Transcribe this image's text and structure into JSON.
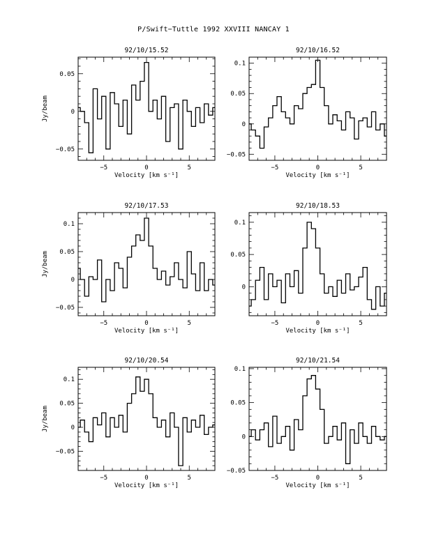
{
  "title": "P/Swift−Tuttle 1992 XXVIII   NANCAY      1",
  "colors": {
    "ink": "#000000",
    "background": "#ffffff"
  },
  "chart_data": [
    {
      "type": "line",
      "title": "92/10/15.52",
      "xlabel": "Velocity [km s⁻¹]",
      "ylabel": "Jy/beam",
      "xlim": [
        -8,
        8
      ],
      "ylim": [
        -0.065,
        0.072
      ],
      "yticks": [
        -0.05,
        0,
        0.05
      ],
      "ytick_labels": [
        "−0.05",
        "0",
        "0.05"
      ],
      "xticks": [
        -5,
        0,
        5
      ],
      "xtick_labels": [
        "−5",
        "0",
        "5"
      ],
      "grid": false,
      "x": [
        -8,
        -7.5,
        -7,
        -6.5,
        -6,
        -5.5,
        -5,
        -4.5,
        -4,
        -3.5,
        -3,
        -2.5,
        -2,
        -1.5,
        -1,
        -0.5,
        0,
        0.5,
        1,
        1.5,
        2,
        2.5,
        3,
        3.5,
        4,
        4.5,
        5,
        5.5,
        6,
        6.5,
        7,
        7.5,
        8
      ],
      "y": [
        0.005,
        0.0,
        -0.015,
        -0.055,
        0.03,
        -0.01,
        0.02,
        -0.05,
        0.025,
        0.01,
        -0.02,
        0.015,
        -0.03,
        0.035,
        0.015,
        0.04,
        0.065,
        0.0,
        0.015,
        -0.01,
        0.02,
        -0.04,
        0.005,
        0.01,
        -0.05,
        0.015,
        0.0,
        -0.02,
        0.005,
        -0.015,
        0.01,
        -0.005,
        0.005
      ]
    },
    {
      "type": "line",
      "title": "92/10/16.52",
      "xlabel": "Velocity [km s⁻¹]",
      "ylabel": "",
      "xlim": [
        -8,
        8
      ],
      "ylim": [
        -0.06,
        0.11
      ],
      "yticks": [
        -0.05,
        0,
        0.05,
        0.1
      ],
      "ytick_labels": [
        "−0.05",
        "0",
        "0.05",
        "0.1"
      ],
      "xticks": [
        -5,
        0,
        5
      ],
      "xtick_labels": [
        "−5",
        "0",
        "5"
      ],
      "grid": false,
      "x": [
        -8,
        -7.5,
        -7,
        -6.5,
        -6,
        -5.5,
        -5,
        -4.5,
        -4,
        -3.5,
        -3,
        -2.5,
        -2,
        -1.5,
        -1,
        -0.5,
        0,
        0.5,
        1,
        1.5,
        2,
        2.5,
        3,
        3.5,
        4,
        4.5,
        5,
        5.5,
        6,
        6.5,
        7,
        7.5,
        8
      ],
      "y": [
        0.0,
        -0.01,
        -0.02,
        -0.04,
        -0.005,
        0.01,
        0.03,
        0.045,
        0.02,
        0.01,
        0.0,
        0.03,
        0.025,
        0.05,
        0.06,
        0.065,
        0.105,
        0.06,
        0.03,
        0.0,
        0.015,
        0.005,
        -0.01,
        0.02,
        0.01,
        -0.025,
        0.005,
        0.01,
        -0.005,
        0.02,
        -0.01,
        0.0,
        -0.02
      ]
    },
    {
      "type": "line",
      "title": "92/10/17.53",
      "xlabel": "Velocity [km s⁻¹]",
      "ylabel": "Jy/beam",
      "xlim": [
        -8,
        8
      ],
      "ylim": [
        -0.065,
        0.12
      ],
      "yticks": [
        -0.05,
        0,
        0.05,
        0.1
      ],
      "ytick_labels": [
        "−0.05",
        "0",
        "0.05",
        "0.1"
      ],
      "xticks": [
        -5,
        0,
        5
      ],
      "xtick_labels": [
        "−5",
        "0",
        "5"
      ],
      "grid": false,
      "x": [
        -8,
        -7.5,
        -7,
        -6.5,
        -6,
        -5.5,
        -5,
        -4.5,
        -4,
        -3.5,
        -3,
        -2.5,
        -2,
        -1.5,
        -1,
        -0.5,
        0,
        0.5,
        1,
        1.5,
        2,
        2.5,
        3,
        3.5,
        4,
        4.5,
        5,
        5.5,
        6,
        6.5,
        7,
        7.5,
        8
      ],
      "y": [
        0.02,
        0.0,
        -0.03,
        0.005,
        0.0,
        0.035,
        -0.04,
        0.0,
        -0.02,
        0.03,
        0.02,
        -0.015,
        0.04,
        0.06,
        0.08,
        0.07,
        0.11,
        0.06,
        0.02,
        0.0,
        0.015,
        -0.01,
        0.005,
        0.03,
        0.0,
        -0.015,
        0.05,
        0.01,
        -0.02,
        0.03,
        -0.02,
        0.0,
        -0.01
      ]
    },
    {
      "type": "line",
      "title": "92/10/18.53",
      "xlabel": "Velocity [km s⁻¹]",
      "ylabel": "",
      "xlim": [
        -8,
        8
      ],
      "ylim": [
        -0.045,
        0.115
      ],
      "yticks": [
        0,
        0.05,
        0.1
      ],
      "ytick_labels": [
        "0",
        "0.05",
        "0.1"
      ],
      "xticks": [
        -5,
        0,
        5
      ],
      "xtick_labels": [
        "−5",
        "0",
        "5"
      ],
      "grid": false,
      "x": [
        -8,
        -7.5,
        -7,
        -6.5,
        -6,
        -5.5,
        -5,
        -4.5,
        -4,
        -3.5,
        -3,
        -2.5,
        -2,
        -1.5,
        -1,
        -0.5,
        0,
        0.5,
        1,
        1.5,
        2,
        2.5,
        3,
        3.5,
        4,
        4.5,
        5,
        5.5,
        6,
        6.5,
        7,
        7.5,
        8
      ],
      "y": [
        -0.03,
        -0.02,
        0.01,
        0.03,
        -0.02,
        0.02,
        0.0,
        0.01,
        -0.025,
        0.02,
        0.0,
        0.025,
        -0.01,
        0.06,
        0.1,
        0.09,
        0.06,
        0.02,
        -0.01,
        0.0,
        -0.015,
        0.01,
        -0.01,
        0.02,
        -0.005,
        0.0,
        0.015,
        0.03,
        -0.02,
        -0.035,
        0.0,
        -0.03,
        -0.01
      ]
    },
    {
      "type": "line",
      "title": "92/10/20.54",
      "xlabel": "Velocity [km s⁻¹]",
      "ylabel": "Jy/beam",
      "xlim": [
        -8,
        8
      ],
      "ylim": [
        -0.09,
        0.125
      ],
      "yticks": [
        -0.05,
        0,
        0.05,
        0.1
      ],
      "ytick_labels": [
        "−0.05",
        "0",
        "0.05",
        "0.1"
      ],
      "xticks": [
        -5,
        0,
        5
      ],
      "xtick_labels": [
        "−5",
        "0",
        "5"
      ],
      "grid": false,
      "x": [
        -8,
        -7.5,
        -7,
        -6.5,
        -6,
        -5.5,
        -5,
        -4.5,
        -4,
        -3.5,
        -3,
        -2.5,
        -2,
        -1.5,
        -1,
        -0.5,
        0,
        0.5,
        1,
        1.5,
        2,
        2.5,
        3,
        3.5,
        4,
        4.5,
        5,
        5.5,
        6,
        6.5,
        7,
        7.5,
        8
      ],
      "y": [
        0.0,
        0.015,
        -0.01,
        -0.03,
        0.02,
        0.005,
        0.03,
        -0.02,
        0.02,
        0.0,
        0.025,
        -0.01,
        0.05,
        0.07,
        0.105,
        0.075,
        0.1,
        0.07,
        0.02,
        0.0,
        0.015,
        -0.02,
        0.03,
        0.0,
        -0.08,
        0.02,
        -0.01,
        0.015,
        0.0,
        0.025,
        -0.015,
        0.0,
        0.005
      ]
    },
    {
      "type": "line",
      "title": "92/10/21.54",
      "xlabel": "Velocity [km s⁻¹]",
      "ylabel": "",
      "xlim": [
        -8,
        8
      ],
      "ylim": [
        -0.05,
        0.102
      ],
      "yticks": [
        -0.05,
        0,
        0.05,
        0.1
      ],
      "ytick_labels": [
        "−0.05",
        "0",
        "0.05",
        "0.1"
      ],
      "xticks": [
        -5,
        0,
        5
      ],
      "xtick_labels": [
        "−5",
        "0",
        "5"
      ],
      "grid": false,
      "x": [
        -8,
        -7.5,
        -7,
        -6.5,
        -6,
        -5.5,
        -5,
        -4.5,
        -4,
        -3.5,
        -3,
        -2.5,
        -2,
        -1.5,
        -1,
        -0.5,
        0,
        0.5,
        1,
        1.5,
        2,
        2.5,
        3,
        3.5,
        4,
        4.5,
        5,
        5.5,
        6,
        6.5,
        7,
        7.5,
        8
      ],
      "y": [
        0.0,
        0.01,
        -0.005,
        0.01,
        0.02,
        -0.015,
        0.03,
        -0.01,
        0.0,
        0.015,
        -0.02,
        0.025,
        0.01,
        0.06,
        0.085,
        0.09,
        0.07,
        0.04,
        -0.01,
        0.0,
        0.015,
        -0.005,
        0.02,
        -0.04,
        0.01,
        -0.01,
        0.02,
        0.0,
        -0.01,
        0.015,
        0.0,
        -0.005,
        0.0
      ]
    }
  ]
}
